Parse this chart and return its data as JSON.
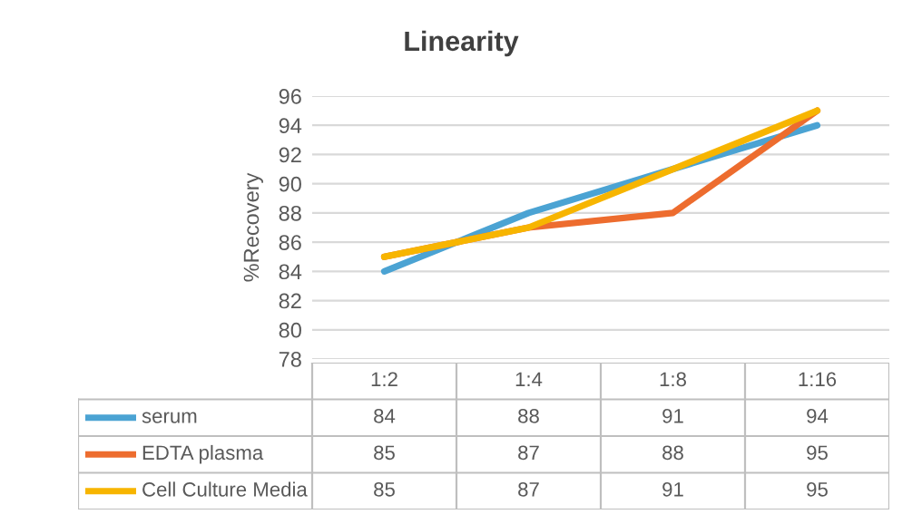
{
  "chart_data": {
    "type": "line",
    "title": "Linearity",
    "ylabel": "%Recovery",
    "categories": [
      "1:2",
      "1:4",
      "1:8",
      "1:16"
    ],
    "series": [
      {
        "name": "serum",
        "color": "#4ba3d3",
        "values": [
          84,
          88,
          91,
          94
        ]
      },
      {
        "name": "EDTA plasma",
        "color": "#ed6c2e",
        "values": [
          85,
          87,
          88,
          95
        ]
      },
      {
        "name": "Cell Culture Media",
        "color": "#f7b500",
        "values": [
          85,
          87,
          91,
          95
        ]
      }
    ],
    "ylim": [
      78,
      96
    ],
    "yticks": [
      78,
      80,
      82,
      84,
      86,
      88,
      90,
      92,
      94,
      96
    ],
    "grid": "y",
    "legend": "bottom",
    "data_labels": true
  }
}
